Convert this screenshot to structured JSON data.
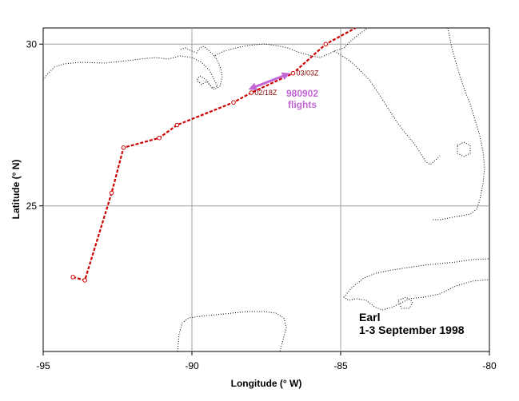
{
  "chart_data": {
    "type": "map",
    "xlabel": "Longitude (° W)",
    "ylabel": "Latitude (° N)",
    "xlim": [
      -95,
      -80
    ],
    "ylim": [
      20.5,
      30.5
    ],
    "x_ticks": [
      -95,
      -90,
      -85,
      -80
    ],
    "y_ticks": [
      25,
      30
    ],
    "grid": true,
    "storm_name": "Earl",
    "storm_dates": "1-3 September 1998",
    "track_color": "#cc0000",
    "track_points": [
      {
        "lon": -94.0,
        "lat": 22.8
      },
      {
        "lon": -93.6,
        "lat": 22.7
      },
      {
        "lon": -92.7,
        "lat": 25.4
      },
      {
        "lon": -92.3,
        "lat": 26.8
      },
      {
        "lon": -91.1,
        "lat": 27.1
      },
      {
        "lon": -90.5,
        "lat": 27.5
      },
      {
        "lon": -88.6,
        "lat": 28.2
      },
      {
        "lon": -88.0,
        "lat": 28.5
      },
      {
        "lon": -86.6,
        "lat": 29.1
      },
      {
        "lon": -85.5,
        "lat": 30.0
      },
      {
        "lon": -84.5,
        "lat": 30.5
      }
    ],
    "fix_labels": [
      {
        "text": "02/18Z",
        "lon": -88.0,
        "lat": 28.5
      },
      {
        "text": "03/03Z",
        "lon": -86.6,
        "lat": 29.1
      }
    ],
    "flight_annotation": {
      "line1": "980902",
      "line2": "flights",
      "color": "#c266d6",
      "from": {
        "lon": -88.1,
        "lat": 28.6
      },
      "to": {
        "lon": -86.7,
        "lat": 29.1
      }
    }
  }
}
